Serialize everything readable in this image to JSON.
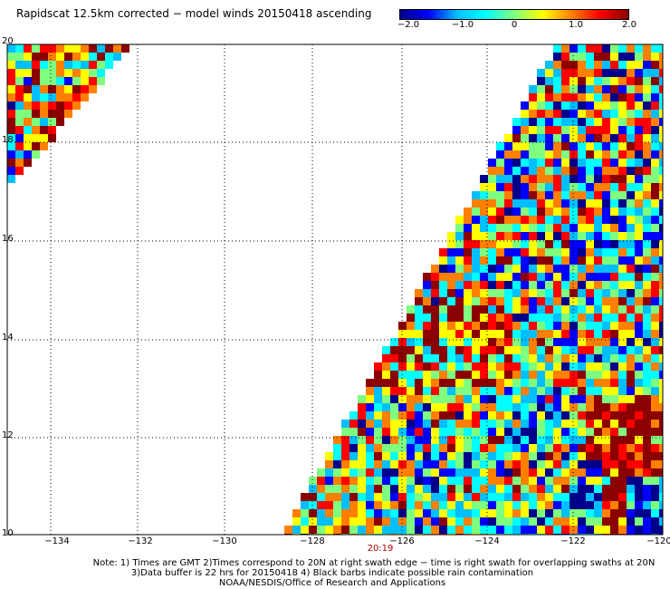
{
  "title": "Rapidscat 12.5km corrected − model winds 20150418 ascending",
  "colorbar": {
    "labels": [
      "−2.0",
      "−1.0",
      "0",
      "1.0",
      "2.0"
    ],
    "values": [
      -2.0,
      -1.0,
      0,
      1.0,
      2.0
    ],
    "colors": [
      "#00008b",
      "#0000ff",
      "#00bfff",
      "#00ffff",
      "#7fff7f",
      "#ffff00",
      "#ff8000",
      "#ff0000",
      "#8b0000"
    ]
  },
  "map": {
    "lon_range": [
      -135,
      -120
    ],
    "lat_range": [
      10,
      20
    ],
    "grid": "dotted",
    "y_tick_labels": [
      "20",
      "18",
      "16",
      "14",
      "12",
      "10"
    ],
    "x_tick_labels": [
      "−134",
      "−132",
      "−130",
      "−128",
      "−126",
      "−124",
      "−122",
      "−120"
    ],
    "time_label": "20:19"
  },
  "notes": {
    "line1": "Note: 1) Times are GMT 2)Times correspond to 20N at right swath edge − time is right swath for overlapping swaths at 20N",
    "line2": "3)Data buffer is 22 hrs for 20150418 4) Black barbs indicate possible rain contamination",
    "line3": "NOAA/NESDIS/Office of Research and Applications"
  }
}
